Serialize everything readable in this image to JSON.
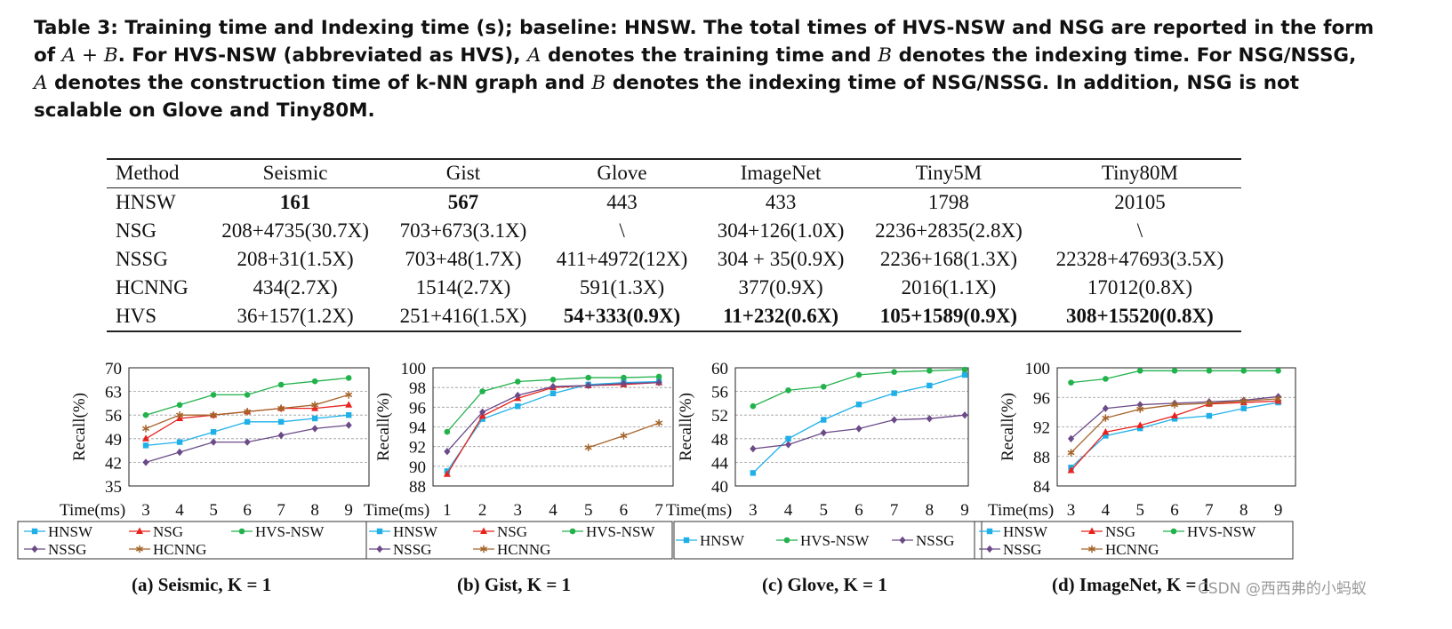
{
  "caption": {
    "parts": [
      "Table 3: Training time and Indexing time (s); baseline: HNSW. The total times of HVS-NSW and NSG are reported in the form of ",
      "A + B",
      ". For HVS-NSW (abbreviated as HVS), ",
      "A",
      " denotes the training time and ",
      "B",
      " denotes the indexing time. For NSG/NSSG, ",
      "A",
      " denotes the construction time of k-NN graph and ",
      "B",
      " denotes the indexing time of NSG/NSSG. In addition, NSG is not scalable on Glove and Tiny80M."
    ]
  },
  "table": {
    "headers": [
      "Method",
      "Seismic",
      "Gist",
      "Glove",
      "ImageNet",
      "Tiny5M",
      "Tiny80M"
    ],
    "rows": [
      [
        "HNSW",
        "161",
        "567",
        "443",
        "433",
        "1798",
        "20105"
      ],
      [
        "NSG",
        "208+4735(30.7X)",
        "703+673(3.1X)",
        "\\",
        "304+126(1.0X)",
        "2236+2835(2.8X)",
        "\\"
      ],
      [
        "NSSG",
        "208+31(1.5X)",
        "703+48(1.7X)",
        "411+4972(12X)",
        "304 + 35(0.9X)",
        "2236+168(1.3X)",
        "22328+47693(3.5X)"
      ],
      [
        "HCNNG",
        "434(2.7X)",
        "1514(2.7X)",
        "591(1.3X)",
        "377(0.9X)",
        "2016(1.1X)",
        "17012(0.8X)"
      ],
      [
        "HVS",
        "36+157(1.2X)",
        "251+416(1.5X)",
        "54+333(0.9X)",
        "11+232(0.6X)",
        "105+1589(0.9X)",
        "308+15520(0.8X)"
      ]
    ],
    "bold": [
      [
        0,
        1
      ],
      [
        0,
        2
      ],
      [
        4,
        3
      ],
      [
        4,
        4
      ],
      [
        4,
        5
      ],
      [
        4,
        6
      ]
    ]
  },
  "colors": {
    "HNSW": "#1fb0e8",
    "NSG": "#e8231f",
    "HVS-NSW": "#22b24c",
    "NSSG": "#6b4a88",
    "HCNNG": "#a4642a"
  },
  "chart_data": [
    {
      "type": "line",
      "caption": "(a) Seismic, K = 1",
      "xlabel": "Time(ms)",
      "ylabel": "Recall(%)",
      "x": [
        3,
        4,
        5,
        6,
        7,
        8,
        9
      ],
      "xlim": [
        2.5,
        9.6
      ],
      "ylim": [
        35,
        70
      ],
      "yticks": [
        35,
        42,
        49,
        56,
        63,
        70
      ],
      "grid": true,
      "legend_rows": [
        [
          "HNSW",
          "NSG",
          "HVS-NSW"
        ],
        [
          "NSSG",
          "HCNNG"
        ]
      ],
      "series": [
        {
          "name": "HNSW",
          "marker": "square",
          "values": [
            47,
            48,
            51,
            54,
            54,
            55,
            56
          ]
        },
        {
          "name": "NSG",
          "marker": "triangle",
          "values": [
            49,
            55,
            56,
            57,
            58,
            58,
            59
          ]
        },
        {
          "name": "HVS-NSW",
          "marker": "circle",
          "values": [
            56,
            59,
            62,
            62,
            65,
            66,
            67
          ]
        },
        {
          "name": "NSSG",
          "marker": "diamond",
          "values": [
            42,
            45,
            48,
            48,
            50,
            52,
            53
          ]
        },
        {
          "name": "HCNNG",
          "marker": "star",
          "values": [
            52,
            56,
            56,
            57,
            58,
            59,
            62
          ]
        }
      ]
    },
    {
      "type": "line",
      "caption": "(b) Gist, K = 1",
      "xlabel": "Time(ms)",
      "ylabel": "Recall(%)",
      "x": [
        1,
        2,
        3,
        4,
        5,
        6,
        7
      ],
      "xlim": [
        0.6,
        7.4
      ],
      "ylim": [
        88,
        100
      ],
      "yticks": [
        88,
        90,
        92,
        94,
        96,
        98,
        100
      ],
      "grid": true,
      "legend_rows": [
        [
          "HNSW",
          "NSG",
          "HVS-NSW"
        ],
        [
          "NSSG",
          "HCNNG"
        ]
      ],
      "series": [
        {
          "name": "HNSW",
          "marker": "square",
          "values": [
            89.5,
            94.8,
            96.1,
            97.4,
            98.3,
            98.5,
            98.6
          ]
        },
        {
          "name": "NSG",
          "marker": "triangle",
          "values": [
            89.2,
            95.1,
            96.9,
            98.0,
            98.2,
            98.3,
            98.5
          ]
        },
        {
          "name": "HVS-NSW",
          "marker": "circle",
          "values": [
            93.5,
            97.6,
            98.6,
            98.8,
            99.0,
            99.0,
            99.1
          ]
        },
        {
          "name": "NSSG",
          "marker": "diamond",
          "values": [
            91.5,
            95.5,
            97.2,
            98.1,
            98.2,
            98.4,
            98.5
          ]
        },
        {
          "name": "HCNNG",
          "marker": "star",
          "values": [
            null,
            null,
            null,
            null,
            91.9,
            93.1,
            94.4
          ]
        }
      ]
    },
    {
      "type": "line",
      "caption": "(c) Glove, K = 1",
      "xlabel": "Time(ms)",
      "ylabel": "Recall(%)",
      "x": [
        3,
        4,
        5,
        6,
        7,
        8,
        9
      ],
      "xlim": [
        2.5,
        9.1
      ],
      "ylim": [
        40,
        60
      ],
      "yticks": [
        40,
        44,
        48,
        52,
        56,
        60
      ],
      "grid": true,
      "legend_rows": [
        [
          "HNSW",
          "HVS-NSW",
          "NSSG"
        ]
      ],
      "series": [
        {
          "name": "HNSW",
          "marker": "square",
          "values": [
            42.2,
            48,
            51.2,
            53.8,
            55.7,
            57,
            58.8
          ]
        },
        {
          "name": "HVS-NSW",
          "marker": "circle",
          "values": [
            53.5,
            56.2,
            56.8,
            58.8,
            59.3,
            59.5,
            59.7
          ]
        },
        {
          "name": "NSSG",
          "marker": "diamond",
          "values": [
            46.3,
            47,
            49,
            49.7,
            51.2,
            51.4,
            52
          ]
        }
      ]
    },
    {
      "type": "line",
      "caption": "(d) ImageNet, K = 1",
      "xlabel": "Time(ms)",
      "ylabel": "Recall(%)",
      "x": [
        3,
        4,
        5,
        6,
        7,
        8,
        9
      ],
      "xlim": [
        2.6,
        9.5
      ],
      "ylim": [
        84,
        100
      ],
      "yticks": [
        84,
        88,
        92,
        96,
        100
      ],
      "grid": true,
      "legend_rows": [
        [
          "HNSW",
          "NSG",
          "HVS-NSW"
        ],
        [
          "NSSG",
          "HCNNG"
        ]
      ],
      "series": [
        {
          "name": "HNSW",
          "marker": "square",
          "values": [
            86.5,
            90.8,
            91.8,
            93.1,
            93.5,
            94.5,
            95.3
          ]
        },
        {
          "name": "NSG",
          "marker": "triangle",
          "values": [
            86.1,
            91.3,
            92.2,
            93.5,
            95.1,
            95.3,
            95.5
          ]
        },
        {
          "name": "HVS-NSW",
          "marker": "circle",
          "values": [
            98.0,
            98.5,
            99.6,
            99.6,
            99.6,
            99.6,
            99.6
          ]
        },
        {
          "name": "NSSG",
          "marker": "diamond",
          "values": [
            90.4,
            94.5,
            95.0,
            95.2,
            95.4,
            95.6,
            96.1
          ]
        },
        {
          "name": "HCNNG",
          "marker": "star",
          "values": [
            88.5,
            93.2,
            94.4,
            95.0,
            95.2,
            95.5,
            95.8
          ]
        }
      ]
    }
  ],
  "watermark": "CSDN @西西弗的小蚂蚁"
}
